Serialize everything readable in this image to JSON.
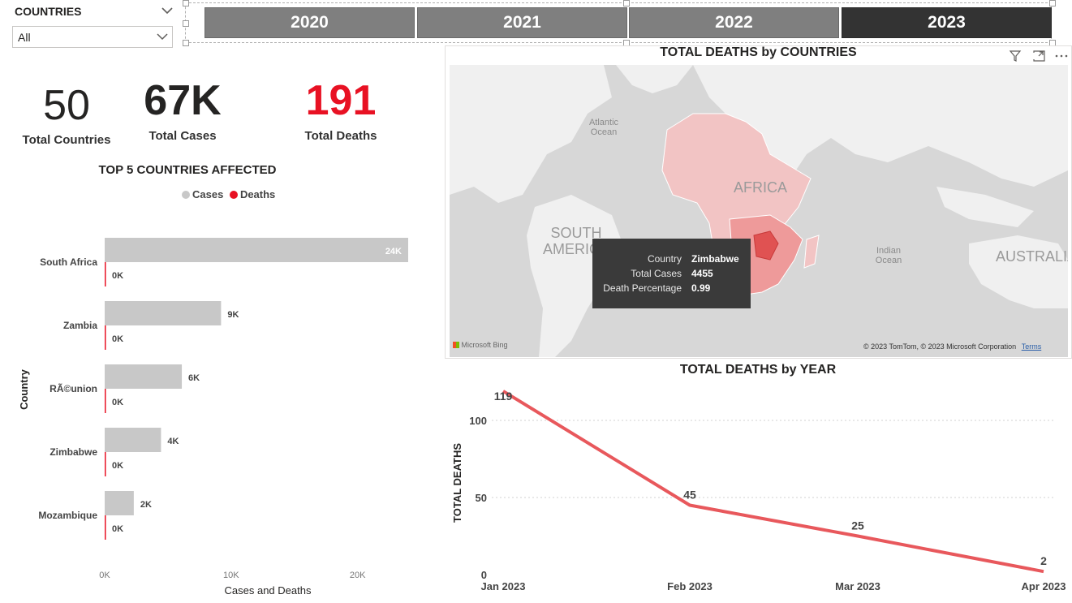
{
  "slicer": {
    "title": "COUNTRIES",
    "selected": "All"
  },
  "years": {
    "buttons": [
      "2020",
      "2021",
      "2022",
      "2023"
    ],
    "selected_index": 3
  },
  "kpis": {
    "countries": {
      "value": "50",
      "label": "Total Countries"
    },
    "cases": {
      "value": "67K",
      "label": "Total Cases"
    },
    "deaths": {
      "value": "191",
      "label": "Total Deaths",
      "color": "#e81123"
    }
  },
  "bar_chart": {
    "title": "TOP 5 COUNTRIES AFFECTED",
    "legend": [
      "Cases",
      "Deaths"
    ],
    "y_axis_title": "Country",
    "x_axis_title": "Cases and Deaths",
    "x_ticks": [
      "0K",
      "10K",
      "20K"
    ],
    "cases_color": "#c8c8c8",
    "deaths_color": "#e81123"
  },
  "map": {
    "title": "TOTAL DEATHS by COUNTRIES",
    "labels": {
      "atlantic": "Atlantic\nOcean",
      "africa": "AFRICA",
      "south_america": "SOUTH\nAMERICA",
      "indian": "Indian\nOcean",
      "australia": "AUSTRALIA"
    },
    "tooltip": {
      "country_key": "Country",
      "country_val": "Zimbabwe",
      "cases_key": "Total Cases",
      "cases_val": "4455",
      "pct_key": "Death Percentage",
      "pct_val": "0.99"
    },
    "bing": "Microsoft Bing",
    "copyright": "© 2023 TomTom, © 2023 Microsoft Corporation",
    "terms": "Terms",
    "icons": [
      "filter-icon",
      "focus-mode-icon",
      "more-options-icon"
    ]
  },
  "line_chart": {
    "title": "TOTAL DEATHS by YEAR",
    "y_axis_title": "TOTAL DEATHS",
    "y_ticks": [
      "0",
      "50",
      "100"
    ],
    "color": "#e8585c"
  },
  "chart_data": [
    {
      "type": "bar",
      "title": "TOP 5 COUNTRIES AFFECTED",
      "orientation": "horizontal",
      "categories": [
        "South Africa",
        "Zambia",
        "RÃ©union",
        "Zimbabwe",
        "Mozambique"
      ],
      "series": [
        {
          "name": "Cases",
          "values": [
            24000,
            9200,
            6100,
            4455,
            2300
          ],
          "labels": [
            "24K",
            "9K",
            "6K",
            "4K",
            "2K"
          ]
        },
        {
          "name": "Deaths",
          "values": [
            0,
            0,
            0,
            0,
            0
          ],
          "labels": [
            "0K",
            "0K",
            "0K",
            "0K",
            "0K"
          ]
        }
      ],
      "xlabel": "Cases and Deaths",
      "ylabel": "Country",
      "xlim": [
        0,
        24000
      ]
    },
    {
      "type": "line",
      "title": "TOTAL DEATHS by YEAR",
      "x": [
        "Jan 2023",
        "Feb 2023",
        "Mar 2023",
        "Apr 2023"
      ],
      "series": [
        {
          "values": [
            119,
            45,
            25,
            2
          ]
        }
      ],
      "ylabel": "TOTAL DEATHS",
      "ylim": [
        0,
        120
      ]
    }
  ]
}
